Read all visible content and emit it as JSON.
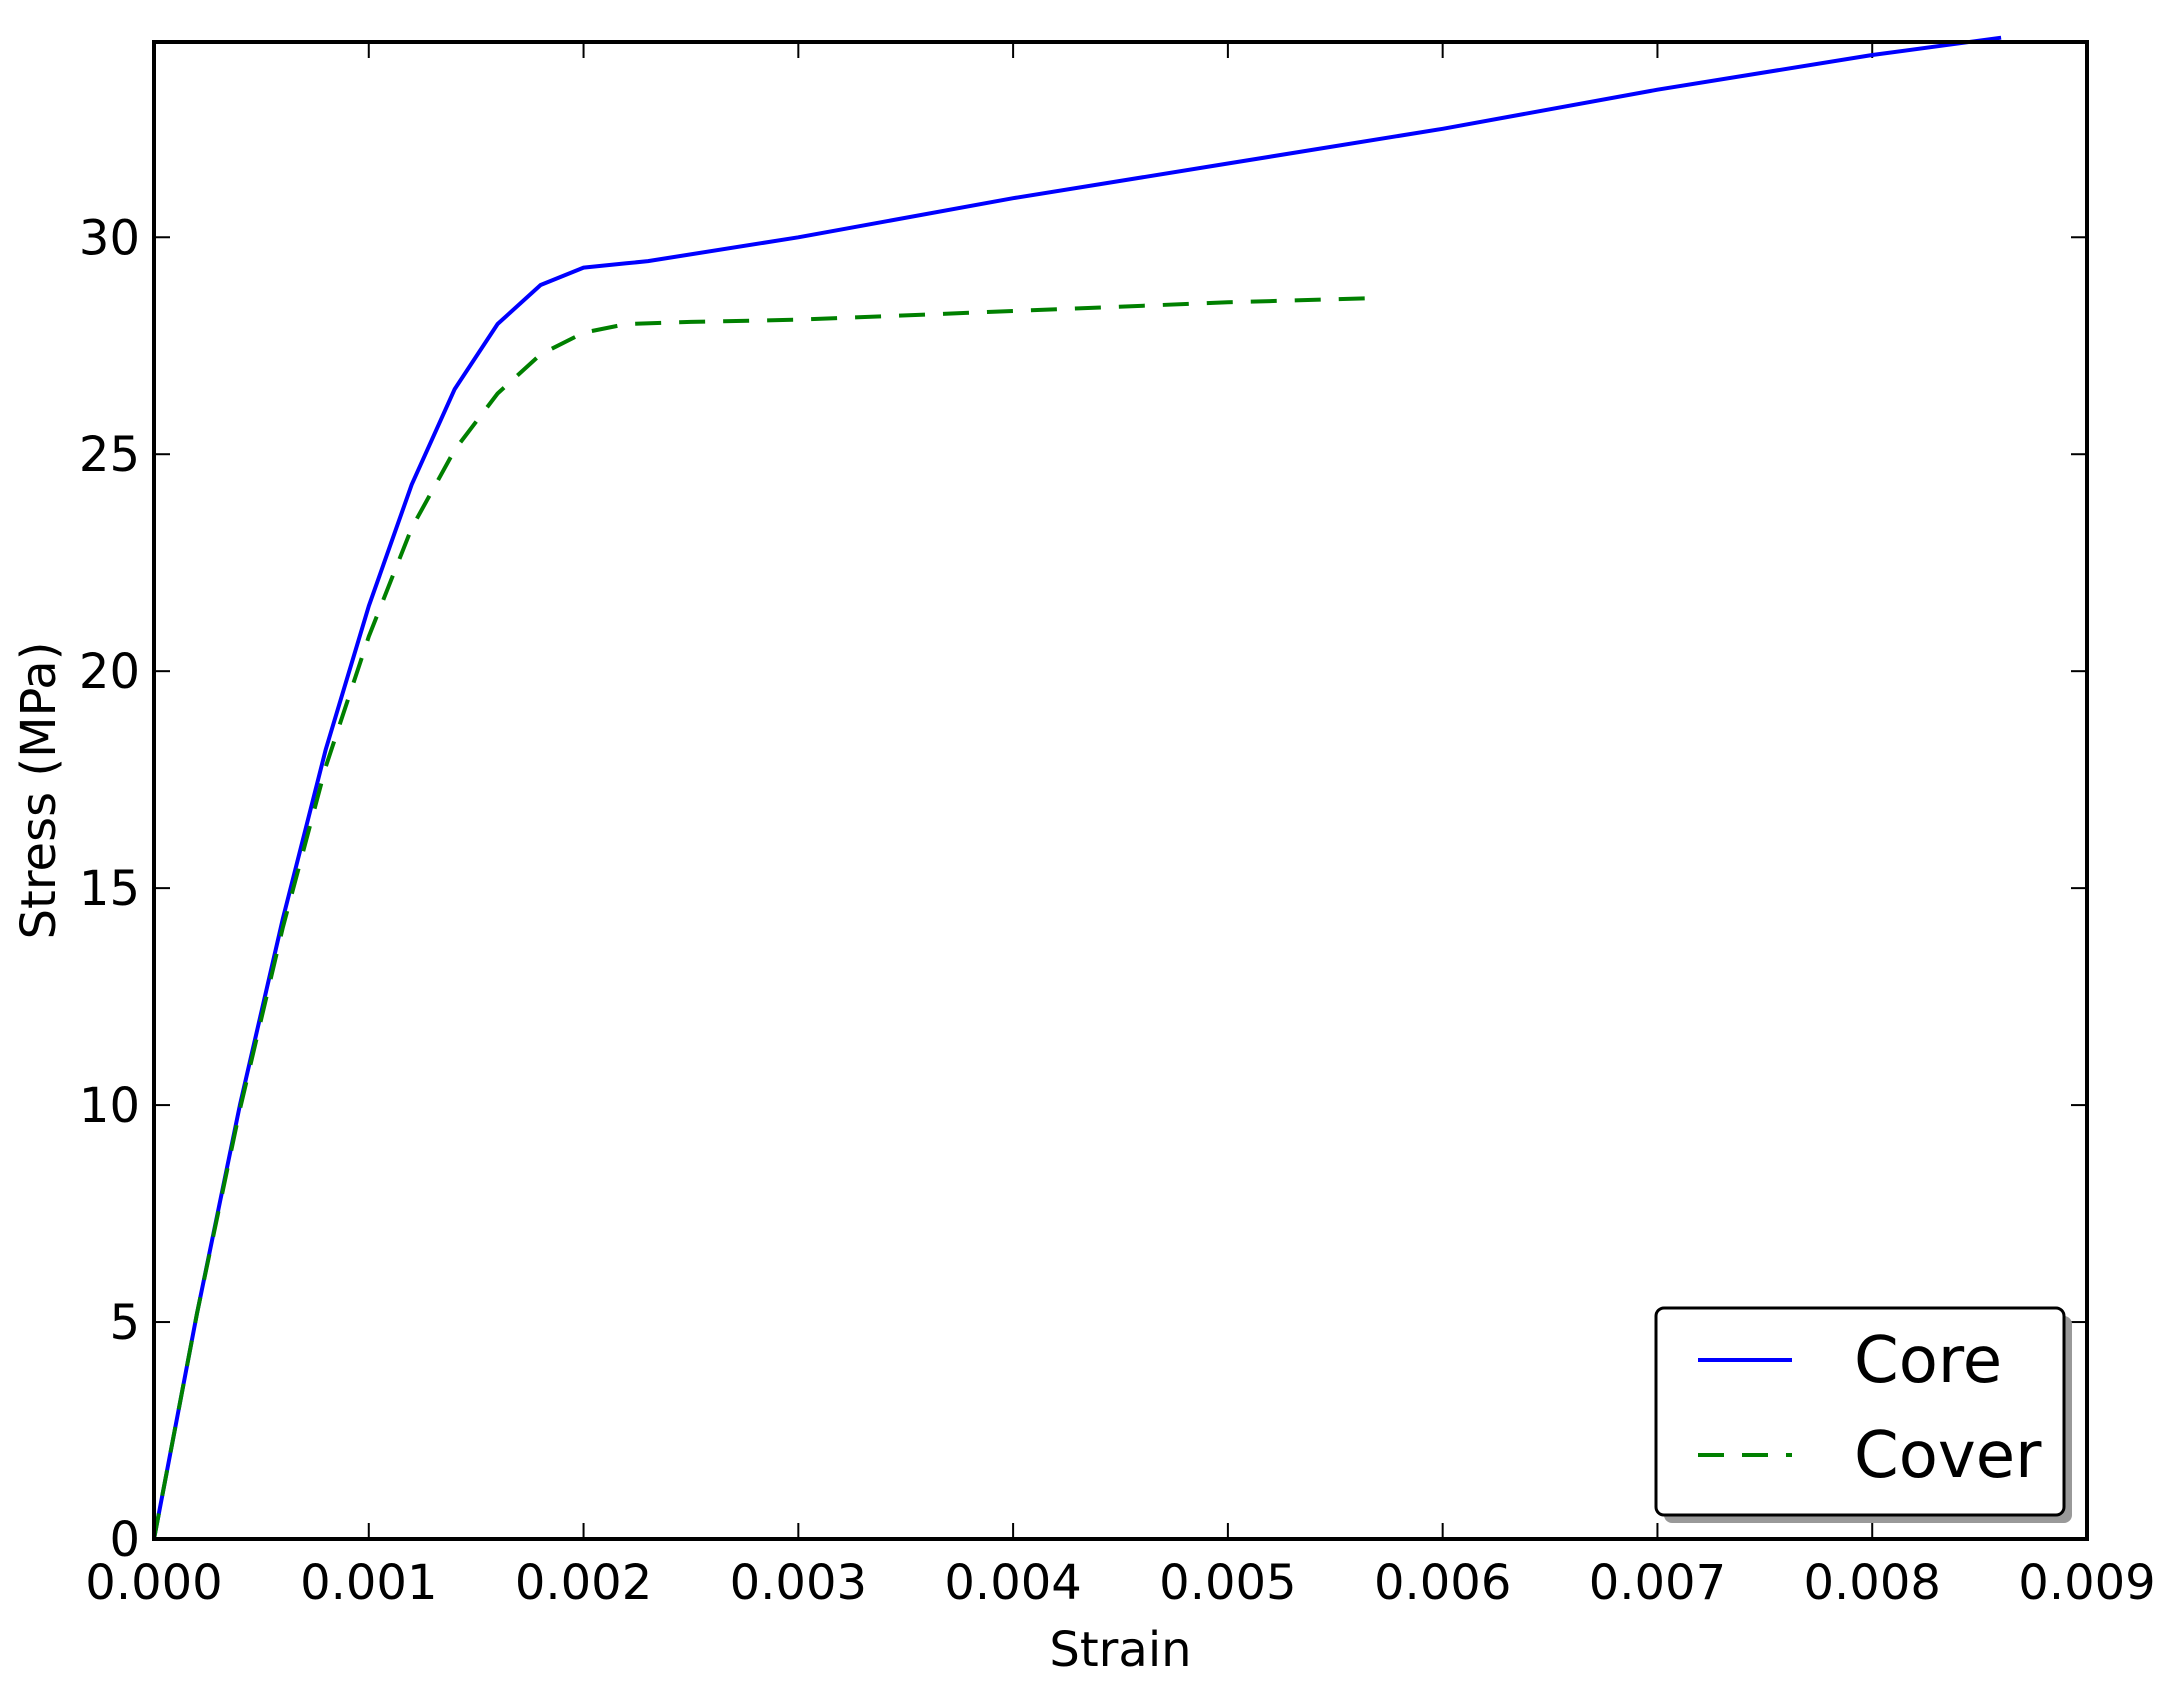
{
  "chart_data": {
    "type": "line",
    "xlabel": "Strain",
    "ylabel": "Stress (MPa)",
    "xlim": [
      0,
      0.009
    ],
    "ylim": [
      0,
      34.5
    ],
    "xticks": [
      "0.000",
      "0.001",
      "0.002",
      "0.003",
      "0.004",
      "0.005",
      "0.006",
      "0.007",
      "0.008",
      "0.009"
    ],
    "yticks": [
      "0",
      "5",
      "10",
      "15",
      "20",
      "25",
      "30"
    ],
    "grid": false,
    "legend_position": "lower-right",
    "series": [
      {
        "name": "Core",
        "color": "#0000ff",
        "style": "solid",
        "x": [
          0,
          0.0002,
          0.0004,
          0.0006,
          0.0008,
          0.001,
          0.0012,
          0.0014,
          0.0016,
          0.0018,
          0.002,
          0.0022,
          0.0023,
          0.003,
          0.004,
          0.005,
          0.006,
          0.007,
          0.008,
          0.0086
        ],
        "y": [
          0,
          5.2,
          10.0,
          14.3,
          18.2,
          21.5,
          24.3,
          26.5,
          28.0,
          28.9,
          29.3,
          29.4,
          29.45,
          30.0,
          30.9,
          31.7,
          32.5,
          33.4,
          34.2,
          34.6
        ]
      },
      {
        "name": "Cover",
        "color": "#008000",
        "style": "dashed",
        "x": [
          0,
          0.0002,
          0.0004,
          0.0006,
          0.0008,
          0.001,
          0.0012,
          0.0014,
          0.0016,
          0.0018,
          0.002,
          0.0022,
          0.0025,
          0.003,
          0.004,
          0.005,
          0.0057
        ],
        "y": [
          0,
          5.2,
          9.9,
          14.1,
          17.8,
          20.8,
          23.3,
          25.1,
          26.4,
          27.3,
          27.8,
          28.0,
          28.05,
          28.1,
          28.3,
          28.5,
          28.6
        ]
      }
    ]
  }
}
